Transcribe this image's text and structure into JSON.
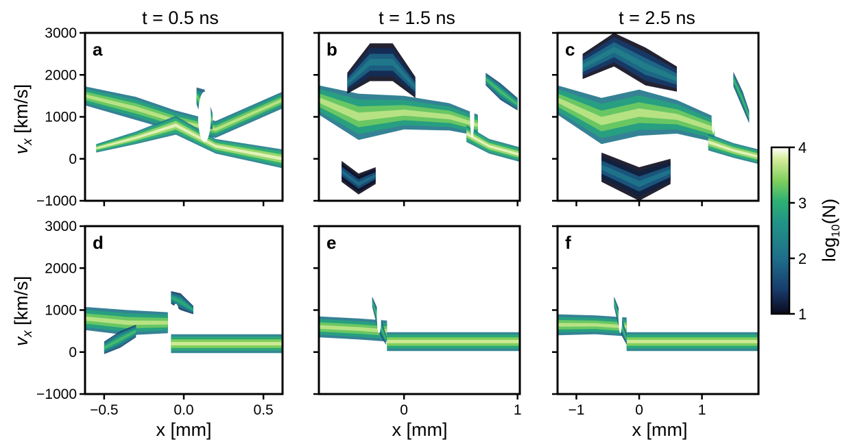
{
  "figure": {
    "column_titles": [
      "t = 0.5 ns",
      "t = 1.5 ns",
      "t = 2.5 ns"
    ],
    "y_axis_label": "v_x [km/s]",
    "x_axis_label": "x [mm]",
    "colorbar": {
      "label": "log10(N)",
      "ticks": [
        "1",
        "2",
        "3",
        "4"
      ],
      "range": [
        1,
        4
      ],
      "colormap": [
        "#0b0a1c",
        "#183d6e",
        "#1e6e8a",
        "#229487",
        "#2fb174",
        "#7fcf5c",
        "#d6ec9b",
        "#ffffff"
      ]
    }
  },
  "chart_data": [
    {
      "type": "heatmap",
      "panel": "a",
      "title": "t = 0.5 ns",
      "row": 0,
      "col": 0,
      "xlim": [
        -0.62,
        0.62
      ],
      "ylim": [
        -1000,
        3000
      ],
      "xticks": [
        -0.5,
        0.0,
        0.5
      ],
      "xtick_labels": [],
      "yticks": [
        -1000,
        0,
        1000,
        2000,
        3000
      ],
      "ytick_labels": [
        "−1000",
        "0",
        "1000",
        "2000",
        "3000"
      ],
      "ylabel": "v_x [km/s]",
      "xlabel": "",
      "bands": [
        {
          "x": [
            -0.62,
            -0.3,
            -0.05,
            0.2,
            0.62
          ],
          "center": [
            1500,
            1200,
            900,
            700,
            1400
          ],
          "width": [
            450,
            550,
            500,
            400,
            400
          ],
          "level": 3.3
        },
        {
          "x": [
            -0.55,
            -0.3,
            -0.05,
            0.2,
            0.62
          ],
          "center": [
            250,
            500,
            800,
            300,
            0
          ],
          "width": [
            200,
            300,
            450,
            350,
            450
          ],
          "level": 3.5
        },
        {
          "x": [
            0.08,
            0.13,
            0.18
          ],
          "center": [
            1500,
            1200,
            900
          ],
          "width": [
            400,
            900,
            400
          ],
          "level": 3.0
        }
      ],
      "holes": [
        {
          "x": 0.13,
          "y": 1000,
          "rx": 0.04,
          "ry": 600
        }
      ]
    },
    {
      "type": "heatmap",
      "panel": "b",
      "title": "t = 1.5 ns",
      "row": 0,
      "col": 1,
      "xlim": [
        -0.75,
        1.02
      ],
      "ylim": [
        -1000,
        3000
      ],
      "xticks": [
        0,
        1
      ],
      "xtick_labels": [],
      "yticks": [
        -1000,
        0,
        1000,
        2000,
        3000
      ],
      "ytick_labels": [],
      "ylabel": "",
      "xlabel": "",
      "bands": [
        {
          "x": [
            -0.75,
            -0.4,
            0.0,
            0.4,
            0.65
          ],
          "center": [
            1400,
            1000,
            1100,
            1000,
            800
          ],
          "width": [
            700,
            1100,
            800,
            650,
            500
          ],
          "level": 3.3
        },
        {
          "x": [
            -0.5,
            -0.3,
            -0.1,
            0.1
          ],
          "center": [
            1800,
            2300,
            2300,
            1700
          ],
          "width": [
            500,
            900,
            900,
            500
          ],
          "level": 1.8
        },
        {
          "x": [
            0.55,
            0.75,
            1.02
          ],
          "center": [
            600,
            300,
            100
          ],
          "width": [
            400,
            350,
            350
          ],
          "level": 3.5
        },
        {
          "x": [
            0.72,
            0.85,
            1.0
          ],
          "center": [
            1900,
            1600,
            1300
          ],
          "width": [
            300,
            400,
            300
          ],
          "level": 2.8
        },
        {
          "x": [
            -0.55,
            -0.4,
            -0.25
          ],
          "center": [
            -300,
            -600,
            -400
          ],
          "width": [
            500,
            500,
            400
          ],
          "level": 1.6
        }
      ],
      "holes": [
        {
          "x": 0.6,
          "y": 1200,
          "rx": 0.02,
          "ry": 700
        }
      ]
    },
    {
      "type": "heatmap",
      "panel": "c",
      "title": "t = 2.5 ns",
      "row": 0,
      "col": 2,
      "xlim": [
        -1.3,
        1.9
      ],
      "ylim": [
        -1000,
        3000
      ],
      "xticks": [
        -1,
        0,
        1
      ],
      "xtick_labels": [],
      "yticks": [
        -1000,
        0,
        1000,
        2000,
        3000
      ],
      "ytick_labels": [],
      "ylabel": "",
      "xlabel": "",
      "bands": [
        {
          "x": [
            -1.3,
            -0.6,
            0.0,
            0.6,
            1.2
          ],
          "center": [
            1400,
            900,
            1100,
            1000,
            700
          ],
          "width": [
            700,
            1100,
            1100,
            800,
            600
          ],
          "level": 3.3
        },
        {
          "x": [
            -0.9,
            -0.4,
            0.1,
            0.6
          ],
          "center": [
            2200,
            2600,
            2200,
            1900
          ],
          "width": [
            600,
            800,
            900,
            600
          ],
          "level": 1.9
        },
        {
          "x": [
            -0.6,
            0.0,
            0.5
          ],
          "center": [
            -200,
            -600,
            -300
          ],
          "width": [
            700,
            800,
            600
          ],
          "level": 1.7
        },
        {
          "x": [
            1.1,
            1.5,
            1.9
          ],
          "center": [
            400,
            200,
            50
          ],
          "width": [
            400,
            350,
            350
          ],
          "level": 3.5
        },
        {
          "x": [
            1.5,
            1.65,
            1.75
          ],
          "center": [
            1900,
            1400,
            1000
          ],
          "width": [
            350,
            400,
            300
          ],
          "level": 2.8
        }
      ],
      "holes": [
        {
          "x": 1.18,
          "y": 1300,
          "rx": 0.03,
          "ry": 700
        }
      ]
    },
    {
      "type": "heatmap",
      "panel": "d",
      "title": "",
      "row": 1,
      "col": 0,
      "xlim": [
        -0.62,
        0.62
      ],
      "ylim": [
        -1000,
        3000
      ],
      "xticks": [
        -0.5,
        0.0,
        0.5
      ],
      "xtick_labels": [
        "−0.5",
        "0.0",
        "0.5"
      ],
      "yticks": [
        -1000,
        0,
        1000,
        2000,
        3000
      ],
      "ytick_labels": [
        "−1000",
        "0",
        "1000",
        "2000",
        "3000"
      ],
      "ylabel": "v_x [km/s]",
      "xlabel": "x [mm]",
      "bands": [
        {
          "x": [
            -0.62,
            -0.35,
            -0.1
          ],
          "center": [
            800,
            700,
            700
          ],
          "width": [
            550,
            600,
            500
          ],
          "level": 3.3
        },
        {
          "x": [
            -0.08,
            0.2,
            0.62
          ],
          "center": [
            200,
            200,
            200
          ],
          "width": [
            450,
            450,
            450
          ],
          "level": 3.4
        },
        {
          "x": [
            -0.5,
            -0.4,
            -0.3
          ],
          "center": [
            100,
            300,
            500
          ],
          "width": [
            300,
            400,
            300
          ],
          "level": 2.8
        },
        {
          "x": [
            -0.08,
            -0.02,
            0.06
          ],
          "center": [
            1300,
            1200,
            1000
          ],
          "width": [
            300,
            400,
            200
          ],
          "level": 2.6
        }
      ],
      "holes": [
        {
          "x": -0.05,
          "y": 900,
          "rx": 0.02,
          "ry": 250
        }
      ]
    },
    {
      "type": "heatmap",
      "panel": "e",
      "title": "",
      "row": 1,
      "col": 1,
      "xlim": [
        -0.75,
        1.02
      ],
      "ylim": [
        -1000,
        3000
      ],
      "xticks": [
        0,
        1
      ],
      "xtick_labels": [
        "0",
        "1"
      ],
      "yticks": [
        -1000,
        0,
        1000,
        2000,
        3000
      ],
      "ytick_labels": [],
      "ylabel": "",
      "xlabel": "x [mm]",
      "bands": [
        {
          "x": [
            -0.75,
            -0.4,
            -0.15
          ],
          "center": [
            600,
            550,
            500
          ],
          "width": [
            500,
            500,
            500
          ],
          "level": 3.3
        },
        {
          "x": [
            -0.15,
            0.3,
            1.02
          ],
          "center": [
            250,
            250,
            250
          ],
          "width": [
            450,
            450,
            450
          ],
          "level": 3.4
        },
        {
          "x": [
            -0.28,
            -0.22,
            -0.16
          ],
          "center": [
            1200,
            700,
            300
          ],
          "width": [
            250,
            500,
            250
          ],
          "level": 2.8
        }
      ],
      "holes": [
        {
          "x": -0.22,
          "y": 900,
          "rx": 0.02,
          "ry": 450
        }
      ]
    },
    {
      "type": "heatmap",
      "panel": "f",
      "title": "",
      "row": 1,
      "col": 2,
      "xlim": [
        -1.3,
        1.9
      ],
      "ylim": [
        -1000,
        3000
      ],
      "xticks": [
        -1,
        0,
        1
      ],
      "xtick_labels": [
        "−1",
        "0",
        "1"
      ],
      "yticks": [
        -1000,
        0,
        1000,
        2000,
        3000
      ],
      "ytick_labels": [],
      "ylabel": "",
      "xlabel": "x [mm]",
      "bands": [
        {
          "x": [
            -1.3,
            -0.7,
            -0.2
          ],
          "center": [
            650,
            650,
            600
          ],
          "width": [
            500,
            450,
            450
          ],
          "level": 3.3
        },
        {
          "x": [
            -0.2,
            0.5,
            1.9
          ],
          "center": [
            250,
            250,
            250
          ],
          "width": [
            450,
            450,
            450
          ],
          "level": 3.4
        },
        {
          "x": [
            -0.4,
            -0.3,
            -0.2
          ],
          "center": [
            1200,
            700,
            300
          ],
          "width": [
            250,
            500,
            250
          ],
          "level": 2.8
        }
      ],
      "holes": [
        {
          "x": -0.3,
          "y": 850,
          "rx": 0.03,
          "ry": 400
        }
      ]
    }
  ]
}
